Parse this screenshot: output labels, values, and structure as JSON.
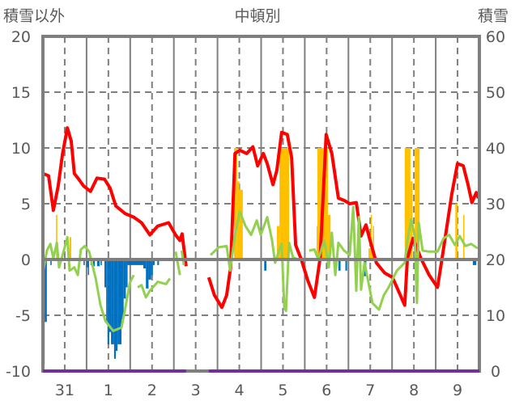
{
  "chart_data": {
    "type": "line",
    "title": "中頓別",
    "ylabel_left": "積雪以外",
    "ylabel_right": "積雪",
    "ylim_left": [
      -10,
      20
    ],
    "ylim_right": [
      0,
      60
    ],
    "yticks_left": [
      "20",
      "15",
      "10",
      "5",
      "0",
      "-5",
      "-10"
    ],
    "yticks_right": [
      "60",
      "50",
      "40",
      "30",
      "20",
      "10",
      "0"
    ],
    "xlim": [
      0,
      10
    ],
    "categories": [
      "31",
      "1",
      "2",
      "3",
      "4",
      "5",
      "6",
      "7",
      "8",
      "9"
    ],
    "grid": true,
    "colors": {
      "red": "#ff0000",
      "green": "#92d050",
      "snow": "#ffc000",
      "blue": "#0070c0",
      "frame": "#7f7f7f",
      "baseline": "#7030a0"
    },
    "series": [
      {
        "name": "red",
        "axis": "left",
        "points": [
          [
            0,
            7.7
          ],
          [
            0.13,
            7.5
          ],
          [
            0.24,
            4.4
          ],
          [
            0.35,
            6.6
          ],
          [
            0.45,
            9.5
          ],
          [
            0.56,
            11.8
          ],
          [
            0.65,
            10.6
          ],
          [
            0.72,
            7.7
          ],
          [
            0.82,
            7.2
          ],
          [
            0.93,
            6.6
          ],
          [
            1.09,
            6.1
          ],
          [
            1.24,
            7.3
          ],
          [
            1.41,
            7.2
          ],
          [
            1.54,
            6.4
          ],
          [
            1.67,
            4.8
          ],
          [
            1.89,
            4.1
          ],
          [
            2.08,
            3.8
          ],
          [
            2.26,
            3.3
          ],
          [
            2.45,
            2.2
          ],
          [
            2.63,
            3.0
          ],
          [
            2.88,
            3.3
          ],
          [
            3.04,
            2.2
          ],
          [
            3.14,
            1.7
          ],
          [
            3.19,
            2.3
          ],
          [
            3.28,
            -0.6
          ],
          null,
          [
            3.8,
            -1.6
          ],
          [
            3.93,
            -3.2
          ],
          [
            4.1,
            -4.3
          ],
          [
            4.21,
            -3.2
          ],
          [
            4.3,
            -0.7
          ],
          [
            4.4,
            9.5
          ],
          [
            4.51,
            9.8
          ],
          [
            4.67,
            9.5
          ],
          [
            4.81,
            10.1
          ],
          [
            4.92,
            8.4
          ],
          [
            5.05,
            9.5
          ],
          [
            5.14,
            8.6
          ],
          [
            5.27,
            6.7
          ],
          [
            5.36,
            8.0
          ],
          [
            5.47,
            11.4
          ],
          [
            5.6,
            11.2
          ],
          [
            5.7,
            9.1
          ],
          [
            5.79,
            1.3
          ],
          [
            5.92,
            0
          ],
          [
            6.07,
            -1.9
          ],
          [
            6.22,
            -3.4
          ],
          [
            6.35,
            0.1
          ],
          [
            6.49,
            11.2
          ],
          [
            6.62,
            9.5
          ],
          [
            6.77,
            5.5
          ],
          [
            6.9,
            5.3
          ],
          [
            7.03,
            5.0
          ],
          [
            7.18,
            5.1
          ],
          [
            7.29,
            2.1
          ],
          [
            7.4,
            3.1
          ],
          [
            7.51,
            1.5
          ],
          [
            7.64,
            -0.3
          ],
          [
            7.83,
            -1.2
          ],
          [
            8.01,
            -1.6
          ],
          [
            8.29,
            -4.1
          ],
          [
            8.35,
            0.1
          ],
          [
            8.48,
            1.9
          ],
          [
            8.66,
            0.1
          ],
          [
            8.85,
            -1.4
          ],
          [
            9.04,
            -2.5
          ],
          [
            9.13,
            -0.3
          ],
          [
            9.37,
            5.9
          ],
          [
            9.5,
            8.6
          ],
          [
            9.63,
            8.4
          ],
          [
            9.74,
            6.7
          ],
          [
            9.83,
            5.1
          ],
          [
            9.93,
            6.0
          ],
          [
            9.98,
            5.5
          ]
        ]
      },
      {
        "name": "green",
        "axis": "left",
        "points": [
          [
            0,
            -1.2
          ],
          [
            0.09,
            0.8
          ],
          [
            0.17,
            1.4
          ],
          [
            0.24,
            0.1
          ],
          [
            0.32,
            1.5
          ],
          [
            0.37,
            -0.7
          ],
          [
            0.45,
            0.4
          ],
          [
            0.56,
            2.0
          ],
          [
            0.61,
            -1.0
          ],
          [
            0.72,
            -0.7
          ],
          [
            0.8,
            -1.4
          ],
          [
            0.87,
            0.9
          ],
          [
            0.96,
            1.2
          ],
          [
            1.06,
            0.7
          ],
          [
            1.21,
            -1.7
          ],
          [
            1.32,
            -4.1
          ],
          [
            1.43,
            -5.5
          ],
          [
            1.61,
            -6.4
          ],
          [
            1.8,
            -6.1
          ],
          [
            1.89,
            -4.3
          ],
          [
            1.99,
            -2.1
          ],
          [
            2.08,
            -1.4
          ],
          null,
          [
            2.17,
            -2.5
          ],
          [
            2.26,
            -2.3
          ],
          [
            2.36,
            -3.4
          ],
          [
            2.45,
            -2.8
          ],
          [
            2.63,
            -2.0
          ],
          [
            2.82,
            -2.2
          ],
          [
            2.91,
            -1.7
          ],
          null,
          [
            3.04,
            0.7
          ],
          [
            3.14,
            -1.4
          ],
          null,
          [
            3.18,
            0.8
          ],
          [
            3.23,
            -0.5
          ],
          null,
          [
            3.84,
            0.4
          ],
          [
            4.03,
            1.1
          ],
          [
            4.21,
            1.2
          ],
          [
            4.29,
            -1.0
          ],
          [
            4.4,
            2.2
          ],
          [
            4.51,
            4.3
          ],
          [
            4.64,
            3.0
          ],
          [
            4.77,
            2.2
          ],
          [
            4.9,
            3.5
          ],
          [
            4.99,
            2.2
          ],
          [
            5.14,
            3.8
          ],
          [
            5.25,
            1.7
          ],
          [
            5.32,
            -0.3
          ],
          [
            5.42,
            0.9
          ],
          [
            5.47,
            1.4
          ],
          [
            5.53,
            -4.3
          ],
          [
            5.57,
            -4.6
          ],
          [
            5.64,
            1.5
          ],
          [
            5.73,
            0.2
          ],
          [
            5.84,
            0
          ],
          null,
          [
            6.1,
            0.8
          ],
          [
            6.22,
            0.9
          ],
          [
            6.31,
            0
          ],
          [
            6.44,
            1.7
          ],
          [
            6.49,
            0.8
          ],
          [
            6.55,
            -0.7
          ],
          [
            6.62,
            2.4
          ],
          [
            6.7,
            -1.4
          ],
          [
            6.77,
            1.5
          ],
          [
            6.9,
            0.8
          ],
          [
            7.03,
            0.4
          ],
          [
            7.11,
            4.7
          ],
          [
            7.18,
            -2.8
          ],
          [
            7.24,
            3.8
          ],
          [
            7.29,
            -2.7
          ],
          [
            7.37,
            -0.3
          ],
          [
            7.46,
            -2.1
          ],
          [
            7.55,
            -3.9
          ],
          [
            7.7,
            -4.5
          ],
          [
            7.81,
            -3.2
          ],
          [
            7.92,
            -2.5
          ],
          [
            8.11,
            -1.0
          ],
          [
            8.29,
            -0.3
          ],
          [
            8.35,
            1.7
          ],
          [
            8.44,
            3.6
          ],
          [
            8.52,
            2.1
          ],
          [
            8.57,
            -3.9
          ],
          [
            8.61,
            3.3
          ],
          [
            8.7,
            0.8
          ],
          [
            8.85,
            0.7
          ],
          [
            9.04,
            0.7
          ],
          [
            9.18,
            1.9
          ],
          [
            9.31,
            2.2
          ],
          [
            9.44,
            1.3
          ],
          [
            9.55,
            2.1
          ],
          [
            9.68,
            1.2
          ],
          [
            9.81,
            1.4
          ],
          [
            9.96,
            1.0
          ]
        ]
      }
    ],
    "snow_bars_right": [
      [
        0.3,
        0.33,
        28
      ],
      [
        0.61,
        0.65,
        24
      ],
      [
        4.38,
        4.45,
        40
      ],
      [
        4.45,
        4.5,
        34
      ],
      [
        4.5,
        4.58,
        32.5
      ],
      [
        5.36,
        5.42,
        26
      ],
      [
        5.42,
        5.64,
        40
      ],
      [
        6.27,
        6.29,
        26
      ],
      [
        6.29,
        6.53,
        40
      ],
      [
        6.53,
        6.59,
        28
      ],
      [
        7.46,
        7.59,
        22
      ],
      [
        7.51,
        7.53,
        28
      ],
      [
        7.56,
        7.58,
        26
      ],
      [
        8.29,
        8.42,
        40
      ],
      [
        8.42,
        8.47,
        34
      ],
      [
        8.52,
        8.63,
        40
      ],
      [
        9.45,
        9.5,
        30
      ],
      [
        9.63,
        9.65,
        28
      ]
    ],
    "blue_bars_left": [
      [
        0,
        0.04,
        -9.4
      ],
      [
        0.04,
        0.09,
        -5.6
      ],
      [
        0.17,
        0.2,
        -0.5
      ],
      [
        0.93,
        0.96,
        -0.5
      ],
      [
        1.0,
        1.03,
        -0.7
      ],
      [
        1.03,
        1.05,
        -1.4
      ],
      [
        1.09,
        1.12,
        -0.5
      ],
      [
        1.15,
        1.19,
        -0.6
      ],
      [
        1.24,
        1.3,
        -0.6
      ],
      [
        1.32,
        1.35,
        -0.5
      ],
      [
        1.41,
        1.45,
        -2.5
      ],
      [
        1.45,
        1.48,
        -5.5
      ],
      [
        1.48,
        1.52,
        -7.6
      ],
      [
        1.52,
        1.56,
        -6.5
      ],
      [
        1.56,
        1.63,
        -7.6
      ],
      [
        1.63,
        1.67,
        -8.9
      ],
      [
        1.67,
        1.71,
        -8.2
      ],
      [
        1.71,
        1.8,
        -7.6
      ],
      [
        1.8,
        1.85,
        -5.4
      ],
      [
        1.85,
        1.9,
        -3.5
      ],
      [
        1.9,
        1.94,
        -2.5
      ],
      [
        1.94,
        2.3,
        -0.5
      ],
      [
        2.3,
        2.36,
        -0.8
      ],
      [
        2.36,
        2.42,
        -2.6
      ],
      [
        2.42,
        2.48,
        -1.8
      ],
      [
        2.48,
        2.52,
        -1.4
      ],
      [
        2.52,
        2.56,
        -0.5
      ],
      [
        2.62,
        2.66,
        -0.5
      ],
      [
        5.07,
        5.12,
        -1.0
      ],
      [
        6.77,
        6.82,
        -1.0
      ],
      [
        6.93,
        6.97,
        -1.0
      ],
      [
        7.35,
        7.41,
        -1.5
      ],
      [
        9.85,
        9.93,
        -0.5
      ]
    ],
    "baseline_gap": [
      3.28,
      3.8
    ]
  }
}
